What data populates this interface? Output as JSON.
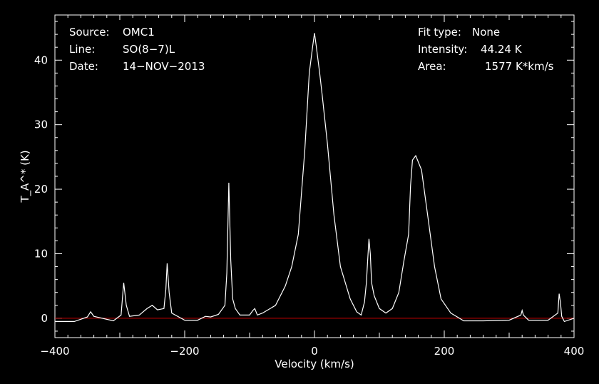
{
  "colors": {
    "background": "#000000",
    "foreground": "#ffffff",
    "baseline": "#cc0000"
  },
  "chart_data": {
    "type": "line",
    "xlabel": "Velocity (km/s)",
    "ylabel": "T_A^* (K)",
    "xlim": [
      -400,
      400
    ],
    "ylim": [
      -3,
      47
    ],
    "x_ticks": [
      -400,
      -200,
      0,
      200,
      400
    ],
    "y_ticks": [
      0,
      10,
      20,
      30,
      40
    ],
    "grid": false,
    "header_left": [
      {
        "key": "Source:",
        "value": "OMC1"
      },
      {
        "key": "Line:",
        "value": "SO(8−7)L"
      },
      {
        "key": "Date:",
        "value": "14−NOV−2013"
      }
    ],
    "header_right": [
      {
        "key": "Fit type:",
        "value": "None"
      },
      {
        "key": "Intensity:",
        "value": "44.24 K"
      },
      {
        "key": "Area:",
        "value": "1577 K*km/s"
      }
    ],
    "baseline_value": 0,
    "series": [
      {
        "x": [
          -400,
          -370,
          -350,
          -345,
          -340,
          -310,
          -298,
          -296,
          -294,
          -290,
          -285,
          -270,
          -258,
          -250,
          -242,
          -232,
          -229,
          -227,
          -224,
          -220,
          -200,
          -180,
          -168,
          -160,
          -148,
          -138,
          -135,
          -132,
          -129,
          -126,
          -122,
          -115,
          -100,
          -95,
          -92,
          -88,
          -80,
          -60,
          -45,
          -35,
          -25,
          -15,
          -8,
          -3,
          0,
          3,
          8,
          12,
          20,
          30,
          40,
          55,
          65,
          72,
          77,
          80,
          82,
          84,
          86,
          88,
          92,
          100,
          110,
          120,
          130,
          138,
          145,
          148,
          151,
          156,
          165,
          175,
          185,
          195,
          210,
          230,
          260,
          300,
          318,
          320,
          322,
          330,
          360,
          375,
          377,
          379,
          381,
          385,
          400
        ],
        "y": [
          -0.5,
          -0.5,
          0.2,
          1.0,
          0.3,
          -0.4,
          0.5,
          3.0,
          5.5,
          2.0,
          0.3,
          0.5,
          1.5,
          2.0,
          1.3,
          1.5,
          4.5,
          8.5,
          4.0,
          0.8,
          -0.3,
          -0.3,
          0.3,
          0.2,
          0.6,
          2.0,
          7.0,
          21.0,
          9.0,
          3.0,
          1.5,
          0.5,
          0.5,
          1.2,
          1.5,
          0.5,
          0.8,
          2.0,
          5.0,
          8.0,
          13.0,
          26.0,
          38.0,
          42.0,
          44.2,
          42.0,
          38.0,
          34.5,
          27.0,
          16.0,
          8.0,
          3.0,
          1.0,
          0.5,
          2.5,
          5.5,
          9.0,
          12.3,
          10.0,
          5.5,
          3.5,
          1.5,
          0.8,
          1.5,
          4.0,
          9.0,
          13.0,
          20.5,
          24.5,
          25.2,
          23.0,
          15.5,
          8.0,
          3.0,
          0.8,
          -0.4,
          -0.4,
          -0.3,
          0.5,
          1.2,
          0.5,
          -0.3,
          -0.3,
          0.8,
          3.8,
          2.5,
          0.3,
          -0.5,
          0.0
        ]
      }
    ]
  }
}
